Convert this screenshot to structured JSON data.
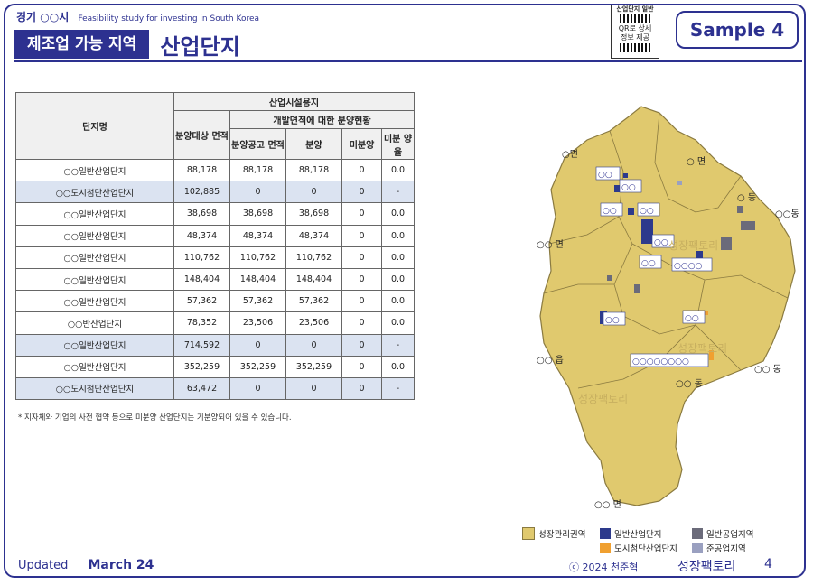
{
  "header": {
    "region": "경기 ○○시",
    "subtitle": "Feasibility study for investing in South Korea",
    "title_box": "제조업 가능 지역",
    "title_main": "산업단지",
    "qr_top": "산업단지 일반",
    "qr_mid1": "QR로 상세",
    "qr_mid2": "정보 제공",
    "sample": "Sample 4"
  },
  "table": {
    "h_name": "단지명",
    "h_group": "산업시설용지",
    "h_target": "분양대상 면적",
    "h_sub": "개발면적에 대한 분양현황",
    "h_announce": "분양공고 면적",
    "h_sold": "분양",
    "h_unsold": "미분양",
    "h_rate": "미분 양율",
    "rows": [
      {
        "name": "○○일반산업단지",
        "target": "88,178",
        "announce": "88,178",
        "sold": "88,178",
        "unsold": "0",
        "rate": "0.0",
        "hl": false
      },
      {
        "name": "○○도시첨단산업단지",
        "target": "102,885",
        "announce": "0",
        "sold": "0",
        "unsold": "0",
        "rate": "-",
        "hl": true
      },
      {
        "name": "○○일반산업단지",
        "target": "38,698",
        "announce": "38,698",
        "sold": "38,698",
        "unsold": "0",
        "rate": "0.0",
        "hl": false
      },
      {
        "name": "○○일반산업단지",
        "target": "48,374",
        "announce": "48,374",
        "sold": "48,374",
        "unsold": "0",
        "rate": "0.0",
        "hl": false
      },
      {
        "name": "○○일반산업단지",
        "target": "110,762",
        "announce": "110,762",
        "sold": "110,762",
        "unsold": "0",
        "rate": "0.0",
        "hl": false
      },
      {
        "name": "○○일반산업단지",
        "target": "148,404",
        "announce": "148,404",
        "sold": "148,404",
        "unsold": "0",
        "rate": "0.0",
        "hl": false
      },
      {
        "name": "○○일반산업단지",
        "target": "57,362",
        "announce": "57,362",
        "sold": "57,362",
        "unsold": "0",
        "rate": "0.0",
        "hl": false
      },
      {
        "name": "○○반산업단지",
        "target": "78,352",
        "announce": "23,506",
        "sold": "23,506",
        "unsold": "0",
        "rate": "0.0",
        "hl": false
      },
      {
        "name": "○○일반산업단지",
        "target": "714,592",
        "announce": "0",
        "sold": "0",
        "unsold": "0",
        "rate": "-",
        "hl": true
      },
      {
        "name": "○○일반산업단지",
        "target": "352,259",
        "announce": "352,259",
        "sold": "352,259",
        "unsold": "0",
        "rate": "0.0",
        "hl": false
      },
      {
        "name": "○○도시첨단산업단지",
        "target": "63,472",
        "announce": "0",
        "sold": "0",
        "unsold": "0",
        "rate": "-",
        "hl": true
      }
    ]
  },
  "note": "* 지자체와 기업의 사전 협약 등으로 미분양 산업단지는 기분양되어 있을 수 있습니다.",
  "map": {
    "labels": {
      "myeon1": "○면",
      "myeon2": "○ 면",
      "dong1": "○ 동",
      "dong2": "○○동",
      "myeon3": "○○ 면",
      "eup": "○○ 읍",
      "dong3": "○○ 동",
      "dong4": "○○ 동",
      "myeon4": "○○ 면",
      "c1": "○○",
      "c2": "○○",
      "c3": "○○",
      "c4": "○○",
      "c5": "○○",
      "c6": "○○",
      "c7": "○○○○",
      "c8": "○○",
      "c9": "○○",
      "c10": "○○○○○○○○",
      "wm1": "성장팩토리",
      "wm2": "성장팩토리",
      "wm3": "성장팩토리"
    },
    "colors": {
      "growth": "#e0c96e",
      "general": "#2d3a8c",
      "urban": "#f0a030",
      "agri": "#6b6b7a",
      "semi": "#9aa0c0"
    }
  },
  "legend": {
    "growth": "성장관리권역",
    "general": "일반산업단지",
    "agri": "일반공업지역",
    "urban": "도시첨단산업단지",
    "semi": "준공업지역"
  },
  "footer": {
    "updated_label": "Updated",
    "updated_date": "March 24",
    "copyright": "ⓒ 2024 천준혁",
    "brand": "성장팩토리",
    "page": "4"
  }
}
